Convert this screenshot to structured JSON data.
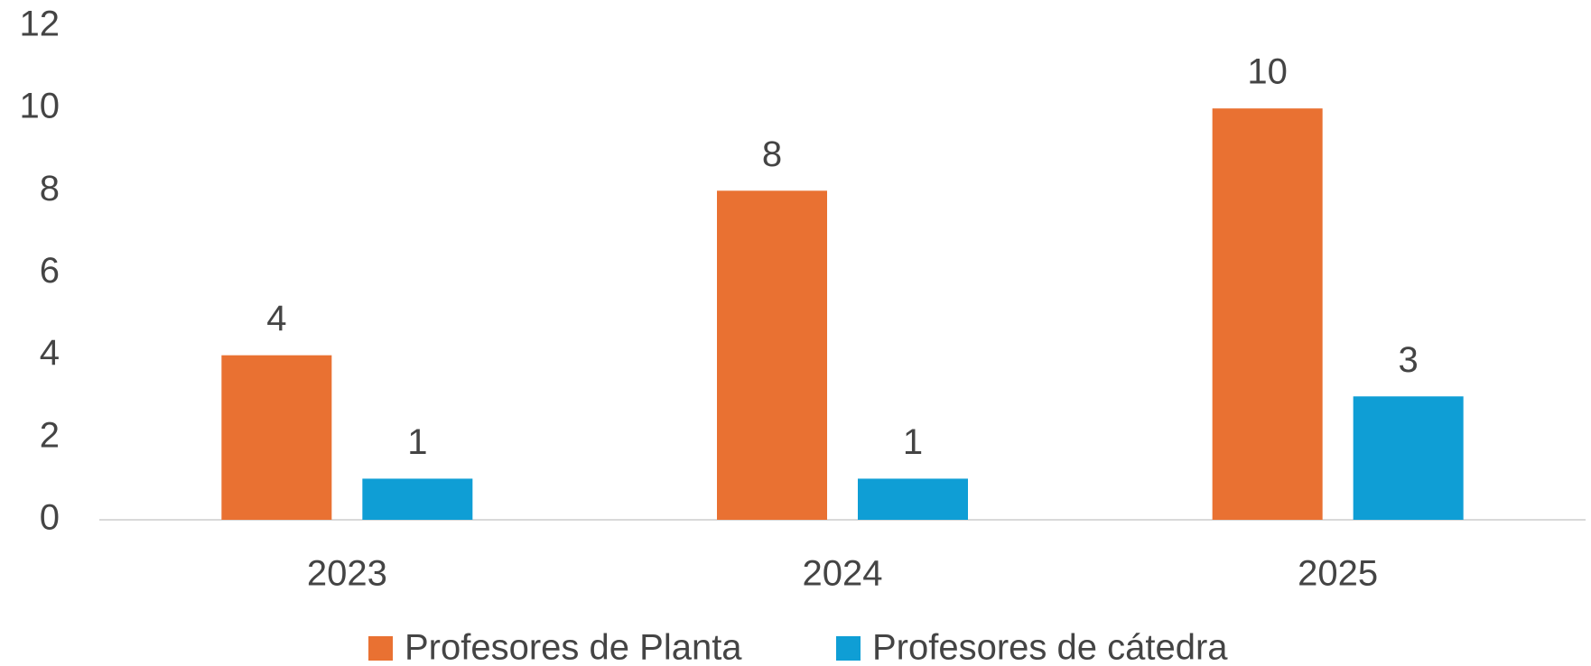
{
  "chart_data": {
    "type": "bar",
    "categories": [
      "2023",
      "2024",
      "2025"
    ],
    "series": [
      {
        "name": "Profesores de Planta",
        "color": "#e97132",
        "values": [
          4,
          8,
          10
        ]
      },
      {
        "name": "Profesores de cátedra",
        "color": "#0f9ed5",
        "values": [
          1,
          1,
          3
        ]
      }
    ],
    "ylim": [
      0,
      12
    ],
    "yticks": [
      0,
      2,
      4,
      6,
      8,
      10,
      12
    ],
    "grid": false,
    "legend": "bottom"
  }
}
